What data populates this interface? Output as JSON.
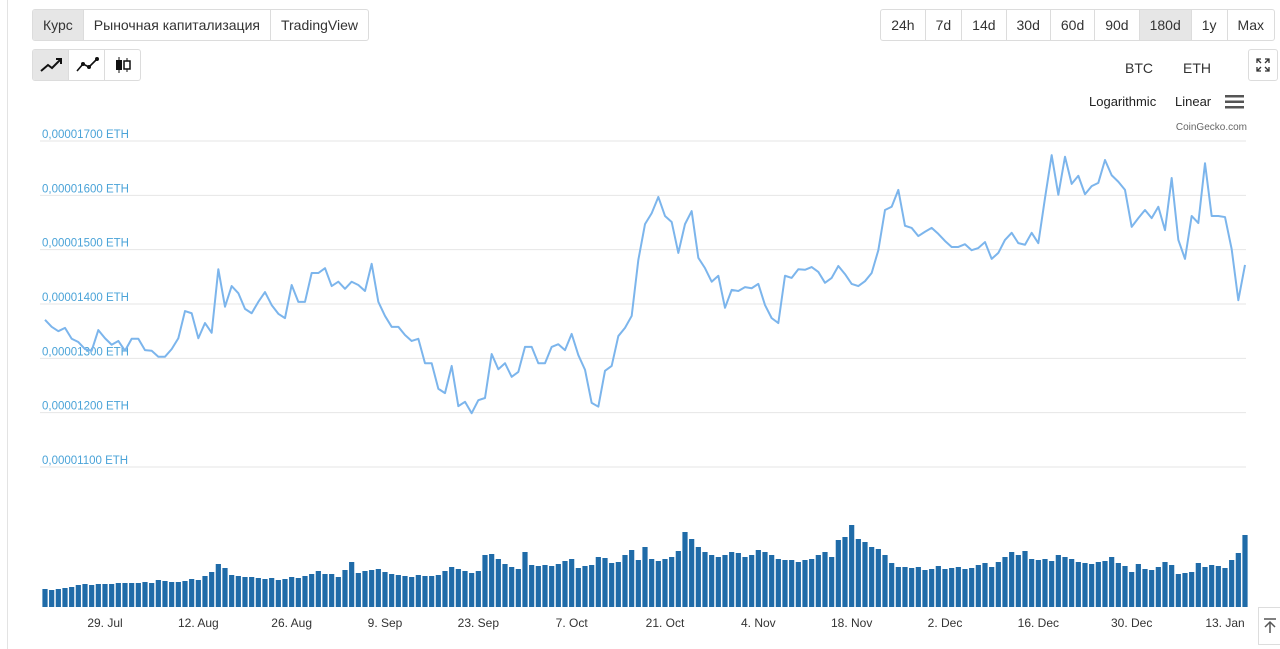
{
  "tabs": [
    "Курс",
    "Рыночная капитализация",
    "TradingView"
  ],
  "active_tab": 0,
  "ranges": [
    "24h",
    "7d",
    "14d",
    "30d",
    "60d",
    "90d",
    "180d",
    "1y",
    "Max"
  ],
  "active_range": 6,
  "toggles": [
    "BTC",
    "ETH"
  ],
  "scale_options": [
    "Logarithmic",
    "Linear"
  ],
  "credit": "CoinGecko.com",
  "chart_data": {
    "type": "line",
    "categories": [
      null,
      null,
      null,
      null,
      null,
      null,
      null,
      null,
      null,
      "29. Jul",
      null,
      null,
      null,
      null,
      null,
      null,
      null,
      null,
      null,
      null,
      null,
      null,
      null,
      "12. Aug",
      null,
      null,
      null,
      null,
      null,
      null,
      null,
      null,
      null,
      null,
      null,
      null,
      null,
      "26. Aug",
      null,
      null,
      null,
      null,
      null,
      null,
      null,
      null,
      null,
      null,
      null,
      null,
      null,
      "9. Sep",
      null,
      null,
      null,
      null,
      null,
      null,
      null,
      null,
      null,
      null,
      null,
      null,
      null,
      "23. Sep",
      null,
      null,
      null,
      null,
      null,
      null,
      null,
      null,
      null,
      null,
      null,
      null,
      null,
      "7. Oct",
      null,
      null,
      null,
      null,
      null,
      null,
      null,
      null,
      null,
      null,
      null,
      null,
      null,
      "21. Oct",
      null,
      null,
      null,
      null,
      null,
      null,
      null,
      null,
      null,
      null,
      null,
      null,
      null,
      "4. Nov",
      null,
      null,
      null,
      null,
      null,
      null,
      null,
      null,
      null,
      null,
      null,
      null,
      null,
      "18. Nov",
      null,
      null,
      null,
      null,
      null,
      null,
      null,
      null,
      null,
      null,
      null,
      null,
      null,
      "2. Dec",
      null,
      null,
      null,
      null,
      null,
      null,
      null,
      null,
      null,
      null,
      null,
      null,
      null,
      "16. Dec",
      null,
      null,
      null,
      null,
      null,
      null,
      null,
      null,
      null,
      null,
      null,
      null,
      null,
      "30. Dec",
      null,
      null,
      null,
      null,
      null,
      null,
      null,
      null,
      null,
      null,
      null,
      null,
      null,
      "13. Jan",
      null,
      null,
      null
    ],
    "series": [
      {
        "color": "#7cb5ec",
        "values": [
          1.371e-05,
          1.358e-05,
          1.35e-05,
          1.356e-05,
          1.336e-05,
          1.33e-05,
          1.317e-05,
          1.314e-05,
          1.352e-05,
          1.337e-05,
          1.325e-05,
          1.332e-05,
          1.314e-05,
          1.336e-05,
          1.336e-05,
          1.315e-05,
          1.314e-05,
          1.303e-05,
          1.303e-05,
          1.317e-05,
          1.337e-05,
          1.387e-05,
          1.383e-05,
          1.337e-05,
          1.365e-05,
          1.347e-05,
          1.464e-05,
          1.395e-05,
          1.433e-05,
          1.42e-05,
          1.391e-05,
          1.383e-05,
          1.404e-05,
          1.422e-05,
          1.398e-05,
          1.382e-05,
          1.374e-05,
          1.435e-05,
          1.404e-05,
          1.404e-05,
          1.457e-05,
          1.457e-05,
          1.466e-05,
          1.433e-05,
          1.441e-05,
          1.428e-05,
          1.441e-05,
          1.435e-05,
          1.424e-05,
          1.474e-05,
          1.404e-05,
          1.378e-05,
          1.358e-05,
          1.358e-05,
          1.343e-05,
          1.332e-05,
          1.336e-05,
          1.291e-05,
          1.291e-05,
          1.244e-05,
          1.236e-05,
          1.286e-05,
          1.212e-05,
          1.22e-05,
          1.199e-05,
          1.223e-05,
          1.227e-05,
          1.308e-05,
          1.28e-05,
          1.291e-05,
          1.266e-05,
          1.275e-05,
          1.321e-05,
          1.321e-05,
          1.291e-05,
          1.291e-05,
          1.321e-05,
          1.326e-05,
          1.315e-05,
          1.345e-05,
          1.306e-05,
          1.279e-05,
          1.218e-05,
          1.211e-05,
          1.277e-05,
          1.286e-05,
          1.341e-05,
          1.356e-05,
          1.378e-05,
          1.481e-05,
          1.547e-05,
          1.567e-05,
          1.597e-05,
          1.562e-05,
          1.551e-05,
          1.494e-05,
          1.547e-05,
          1.571e-05,
          1.485e-05,
          1.466e-05,
          1.441e-05,
          1.452e-05,
          1.393e-05,
          1.426e-05,
          1.424e-05,
          1.431e-05,
          1.429e-05,
          1.437e-05,
          1.398e-05,
          1.374e-05,
          1.365e-05,
          1.452e-05,
          1.448e-05,
          1.464e-05,
          1.463e-05,
          1.468e-05,
          1.459e-05,
          1.439e-05,
          1.448e-05,
          1.47e-05,
          1.455e-05,
          1.437e-05,
          1.433e-05,
          1.442e-05,
          1.457e-05,
          1.499e-05,
          1.573e-05,
          1.579e-05,
          1.61e-05,
          1.544e-05,
          1.54e-05,
          1.525e-05,
          1.533e-05,
          1.54e-05,
          1.529e-05,
          1.516e-05,
          1.505e-05,
          1.505e-05,
          1.51e-05,
          1.499e-05,
          1.503e-05,
          1.514e-05,
          1.483e-05,
          1.494e-05,
          1.518e-05,
          1.531e-05,
          1.512e-05,
          1.509e-05,
          1.531e-05,
          1.512e-05,
          1.595e-05,
          1.674e-05,
          1.601e-05,
          1.671e-05,
          1.621e-05,
          1.636e-05,
          1.602e-05,
          1.617e-05,
          1.623e-05,
          1.665e-05,
          1.637e-05,
          1.625e-05,
          1.61e-05,
          1.542e-05,
          1.558e-05,
          1.573e-05,
          1.558e-05,
          1.579e-05,
          1.536e-05,
          1.632e-05,
          1.518e-05,
          1.483e-05,
          1.562e-05,
          1.549e-05,
          1.659e-05,
          1.562e-05,
          1.562e-05,
          1.56e-05,
          1.501e-05,
          1.407e-05,
          1.472e-05
        ]
      },
      {
        "type": "bar",
        "color": "#1f6ba8",
        "values": [
          18,
          17,
          18,
          19,
          20,
          22,
          23,
          22,
          23,
          23,
          23,
          24,
          24,
          24,
          24,
          25,
          24,
          27,
          26,
          25,
          25,
          26,
          28,
          27,
          31,
          35,
          43,
          39,
          32,
          31,
          30,
          30,
          29,
          28,
          29,
          27,
          28,
          30,
          29,
          31,
          33,
          36,
          33,
          33,
          30,
          37,
          45,
          34,
          36,
          37,
          38,
          35,
          33,
          32,
          31,
          30,
          32,
          31,
          31,
          32,
          36,
          40,
          38,
          36,
          34,
          36,
          52,
          53,
          48,
          43,
          40,
          38,
          55,
          42,
          41,
          42,
          41,
          43,
          46,
          48,
          39,
          41,
          42,
          50,
          49,
          44,
          45,
          52,
          57,
          47,
          60,
          48,
          46,
          48,
          50,
          56,
          75,
          68,
          60,
          55,
          52,
          50,
          52,
          55,
          54,
          50,
          52,
          57,
          55,
          52,
          48,
          47,
          47,
          45,
          47,
          48,
          52,
          55,
          50,
          67,
          70,
          82,
          68,
          65,
          60,
          58,
          52,
          44,
          40,
          40,
          39,
          40,
          37,
          38,
          41,
          38,
          39,
          40,
          38,
          39,
          42,
          44,
          40,
          45,
          50,
          55,
          52,
          56,
          48,
          47,
          48,
          46,
          52,
          50,
          48,
          45,
          44,
          43,
          45,
          46,
          50,
          44,
          41,
          35,
          43,
          38,
          37,
          40,
          45,
          42,
          33,
          34,
          35,
          44,
          40,
          42,
          41,
          39,
          47,
          54,
          72
        ]
      }
    ],
    "ylim": [
      1.1e-05,
      1.7e-05
    ],
    "yticks": [
      {
        "value": 1.1e-05,
        "label": "0,00001100 ETH"
      },
      {
        "value": 1.2e-05,
        "label": "0,00001200 ETH"
      },
      {
        "value": 1.3e-05,
        "label": "0,00001300 ETH"
      },
      {
        "value": 1.4e-05,
        "label": "0,00001400 ETH"
      },
      {
        "value": 1.5e-05,
        "label": "0,00001500 ETH"
      },
      {
        "value": 1.6e-05,
        "label": "0,00001600 ETH"
      },
      {
        "value": 1.7e-05,
        "label": "0,00001700 ETH"
      }
    ],
    "grid": true
  }
}
